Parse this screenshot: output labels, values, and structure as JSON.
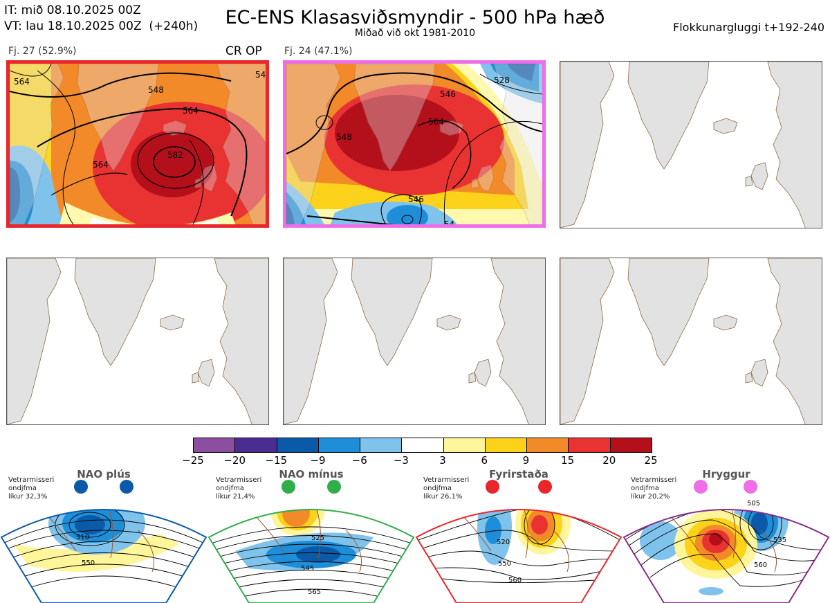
{
  "header": {
    "it_line": "IT: mið 08.10.2025 00Z",
    "vt_line": "VT: lau 18.10.2025 00Z  (+240h)",
    "title": "EC-ENS Klasasviðsmyndir - 500 hPa hæð",
    "subtitle": "Miðað við okt 1981-2010",
    "window": "Flokkunargluggi t+192-240"
  },
  "clusters": [
    {
      "label": "Fj. 27 (52.9%)",
      "tag": "CR OP",
      "border_color": "#e8262b",
      "contours": [
        "564",
        "548",
        "564",
        "564",
        "582",
        "54"
      ]
    },
    {
      "label": "Fj. 24 (47.1%)",
      "tag": "",
      "border_color": "#ee6ee8",
      "contours": [
        "528",
        "546",
        "548",
        "564",
        "546",
        "54"
      ]
    }
  ],
  "colorbar": {
    "ticks": [
      "−25",
      "−20",
      "−15",
      "−9",
      "−6",
      "−3",
      "3",
      "6",
      "9",
      "15",
      "20",
      "25"
    ],
    "colors": [
      "#8b4ea0",
      "#4a2d90",
      "#0a5aa8",
      "#1e8ed8",
      "#7fc3ec",
      "#ffffff",
      "#fff59a",
      "#fdd21a",
      "#f38a2a",
      "#e93232",
      "#b3101c"
    ]
  },
  "regimes": [
    {
      "title": "NAO plús",
      "line1": "Vetrarmisseri",
      "line2": "ondjfma",
      "line3": "líkur 32,3%",
      "color": "#0a5aa8",
      "contours": [
        "510",
        "550"
      ]
    },
    {
      "title": "NAO mínus",
      "line1": "Vetrarmisseri",
      "line2": "ondjfma",
      "line3": "líkur 21,4%",
      "color": "#2fae4a",
      "contours": [
        "525",
        "545",
        "565"
      ]
    },
    {
      "title": "Fyrirstaða",
      "line1": "Vetrarmisseri",
      "line2": "ondjfma",
      "line3": "líkur 26,1%",
      "color": "#e8262b",
      "contours": [
        "520",
        "550",
        "560"
      ]
    },
    {
      "title": "Hryggur",
      "line1": "Vetrarmisseri",
      "line2": "ondjfma",
      "line3": "líkur 20,2%",
      "color": "#8a2a8e",
      "contours": [
        "505",
        "535",
        "560"
      ]
    }
  ]
}
